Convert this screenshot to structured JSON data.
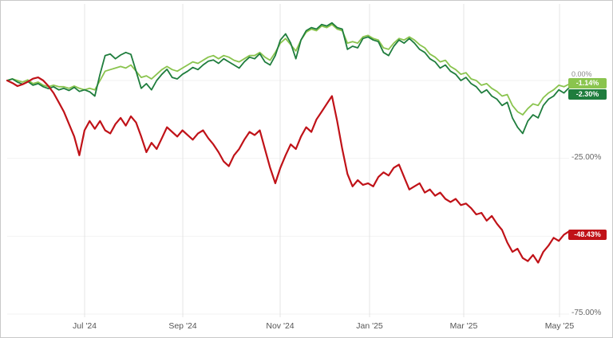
{
  "chart_data": {
    "type": "line",
    "title": "",
    "x_axis": {
      "tick_labels": [
        "Jul '24",
        "Sep '24",
        "Nov '24",
        "Jan '25",
        "Mar '25",
        "May '25"
      ]
    },
    "y_axis": {
      "unit": "%",
      "min": -75,
      "max": 24,
      "ticks": [
        {
          "label": "0.00%",
          "value": 0
        },
        {
          "label": "-25.00%",
          "value": -25
        },
        {
          "label": "-50.00%",
          "value": -50
        },
        {
          "label": "-75.00%",
          "value": -75
        }
      ]
    },
    "legend_position": "none",
    "grid": true,
    "series": [
      {
        "id": "light-green",
        "color": "#8ac44e",
        "width": 1.8,
        "end_label": "-1.14%",
        "end_value": -1.14,
        "values": [
          0,
          0.5,
          0,
          -0.5,
          0.2,
          -1,
          -0.5,
          -1.5,
          -2,
          -1.5,
          -2,
          -2,
          -2.5,
          -1.8,
          -2.5,
          -3,
          -2.5,
          -3,
          0,
          3,
          3.5,
          4,
          4.5,
          4,
          5,
          3,
          1,
          1.5,
          0.5,
          2,
          3.5,
          4.5,
          3.5,
          3,
          4,
          5,
          6,
          5.5,
          6.5,
          7.5,
          8,
          7,
          8,
          7.5,
          6.5,
          6,
          7,
          8,
          8,
          9,
          7.5,
          6.5,
          9,
          12,
          13.5,
          11.5,
          9.5,
          13,
          15.5,
          16.5,
          16,
          17.5,
          17,
          18,
          16.5,
          16,
          12,
          12.5,
          12,
          14,
          14.5,
          13.5,
          13,
          10.5,
          10,
          12,
          13.5,
          13,
          14,
          13,
          11.5,
          10.5,
          8.5,
          7.5,
          6,
          6.5,
          4.5,
          3.5,
          2,
          2.5,
          0.5,
          0,
          -1.5,
          -1,
          -2.5,
          -3.5,
          -5,
          -4.5,
          -8,
          -10,
          -11,
          -9,
          -7.5,
          -8,
          -5.5,
          -4,
          -3,
          -1.5,
          -2,
          -1.14
        ]
      },
      {
        "id": "dark-green",
        "color": "#1f7d3d",
        "width": 1.8,
        "end_label": "-2.30%",
        "end_value": -2.3,
        "values": [
          0,
          0.5,
          -0.5,
          -1.2,
          -0.3,
          -1.5,
          -1,
          -2,
          -2.6,
          -2,
          -3,
          -2.5,
          -3.2,
          -2.2,
          -3.5,
          -3,
          -3.6,
          -5,
          2,
          8,
          8.5,
          7,
          8.2,
          9,
          8.4,
          3,
          -2.5,
          -1,
          -3,
          0,
          2,
          3.6,
          1,
          0.5,
          2,
          3,
          4.2,
          3.5,
          5,
          6.2,
          6.6,
          5.5,
          7,
          6,
          5,
          4,
          6,
          7.5,
          7,
          8.6,
          6,
          5,
          8,
          13,
          15,
          12,
          7,
          13,
          16,
          17,
          16.5,
          18,
          17.5,
          18.5,
          17,
          16.5,
          10,
          11,
          10.5,
          13.5,
          14,
          13,
          12.5,
          9,
          8,
          11,
          13,
          12,
          13.5,
          12,
          10,
          9,
          7,
          6,
          4,
          5,
          3,
          2,
          0,
          1,
          -1,
          -2,
          -4,
          -3,
          -5,
          -6,
          -8,
          -7,
          -12,
          -15,
          -17,
          -13,
          -11,
          -12,
          -8,
          -6,
          -5,
          -3,
          -4,
          -2.3
        ]
      },
      {
        "id": "red",
        "color": "#c01218",
        "width": 2.2,
        "end_label": "-48.43%",
        "end_value": -48.43,
        "values": [
          0,
          -0.8,
          -1.8,
          -1.2,
          -0.4,
          0.6,
          1,
          0,
          -1.8,
          -4,
          -7,
          -10,
          -14,
          -18,
          -24,
          -16,
          -13,
          -15.5,
          -13,
          -16,
          -17,
          -14,
          -12,
          -14.5,
          -11.5,
          -13.5,
          -18,
          -23,
          -20,
          -22,
          -18.5,
          -15,
          -16.5,
          -18,
          -16,
          -17.5,
          -19,
          -17,
          -16,
          -18.5,
          -20.5,
          -23,
          -26,
          -27.5,
          -24,
          -22,
          -19,
          -16.5,
          -17.5,
          -16,
          -22,
          -28,
          -33,
          -28,
          -24,
          -20.5,
          -22,
          -18,
          -15,
          -16.5,
          -12.5,
          -10,
          -7.5,
          -5,
          -13,
          -22,
          -30,
          -34,
          -32,
          -33.5,
          -33,
          -34,
          -31,
          -29.5,
          -30.5,
          -28,
          -27,
          -31,
          -35,
          -34,
          -33,
          -36,
          -35,
          -37,
          -36,
          -38,
          -39,
          -38,
          -40,
          -39.5,
          -41,
          -43,
          -42.5,
          -45,
          -43.5,
          -46,
          -48,
          -52,
          -55,
          -54,
          -57,
          -58,
          -56,
          -58.5,
          -55,
          -53,
          -50.5,
          -51.5,
          -49.5,
          -48.43
        ]
      }
    ]
  }
}
